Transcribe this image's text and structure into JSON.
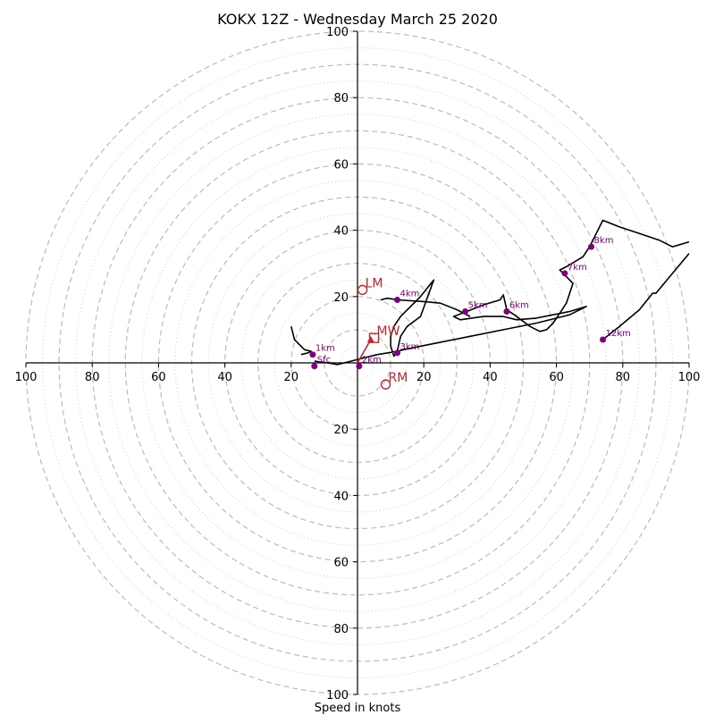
{
  "chart_data": {
    "type": "hodograph",
    "title": "KOKX 12Z - Wednesday March 25 2020",
    "xlabel": "Speed in knots",
    "ylabel": "",
    "xlim": [
      -100,
      100
    ],
    "ylim": [
      -100,
      100
    ],
    "axis_ticks": {
      "right": [
        "20",
        "40",
        "60",
        "80",
        "100"
      ],
      "left": [
        "20",
        "40",
        "60",
        "80",
        "100"
      ],
      "up": [
        "20",
        "40",
        "60",
        "80",
        "100"
      ],
      "down": [
        "20",
        "40",
        "60",
        "80",
        "100"
      ]
    },
    "rings": {
      "major": [
        10,
        20,
        30,
        40,
        50,
        60,
        70,
        80,
        90,
        100
      ],
      "minor": [
        5,
        15,
        25,
        35,
        45,
        55,
        65,
        75,
        85,
        95
      ]
    },
    "colors": {
      "trace": "#000000",
      "height_markers": "#800080",
      "storm_motion": "#c0262d",
      "rings": "#bbbbbb"
    },
    "trace": [
      [
        -13,
        0.5
      ],
      [
        -9,
        0
      ],
      [
        -6,
        -0.5
      ],
      [
        -2,
        0.5
      ],
      [
        2,
        1.5
      ],
      [
        6,
        2.5
      ],
      [
        9,
        3
      ],
      [
        12,
        3.5
      ],
      [
        13,
        8
      ],
      [
        15,
        11
      ],
      [
        19,
        14
      ],
      [
        23,
        25
      ],
      [
        19,
        20
      ],
      [
        16,
        17
      ],
      [
        13,
        14
      ],
      [
        11,
        11
      ],
      [
        10,
        8
      ],
      [
        10,
        5
      ],
      [
        11,
        2
      ],
      [
        12,
        3.5
      ],
      [
        14,
        4
      ],
      [
        24,
        6
      ],
      [
        34,
        8
      ],
      [
        44,
        10
      ],
      [
        54,
        12
      ],
      [
        64,
        14.5
      ],
      [
        69,
        17
      ],
      [
        64,
        15.5
      ],
      [
        59,
        14.5
      ],
      [
        54,
        13.5
      ],
      [
        48,
        13
      ],
      [
        44,
        14
      ],
      [
        38,
        14
      ],
      [
        31,
        13
      ],
      [
        29,
        14
      ],
      [
        33,
        15.5
      ],
      [
        38,
        17.5
      ],
      [
        43,
        19
      ],
      [
        44,
        20.5
      ],
      [
        45,
        16
      ],
      [
        48,
        14
      ],
      [
        52,
        11
      ],
      [
        55,
        9.5
      ],
      [
        57,
        10
      ],
      [
        59,
        12
      ],
      [
        61,
        15
      ],
      [
        63,
        18
      ],
      [
        65,
        24
      ],
      [
        61,
        28
      ],
      [
        63,
        29
      ],
      [
        68,
        32
      ],
      [
        70,
        35
      ],
      [
        72,
        39
      ],
      [
        74,
        43
      ],
      [
        79,
        41
      ],
      [
        85,
        39
      ],
      [
        91,
        37
      ],
      [
        94,
        35.5
      ],
      [
        95,
        35
      ],
      [
        100,
        36.5
      ]
    ],
    "trace_lower": [
      [
        -20,
        11
      ],
      [
        -19,
        7
      ],
      [
        -16,
        4
      ],
      [
        -14,
        3.5
      ],
      [
        -15,
        3
      ],
      [
        -17,
        2.5
      ]
    ],
    "trace_upper": [
      [
        74,
        7
      ],
      [
        79,
        11
      ],
      [
        85,
        16
      ],
      [
        89,
        21
      ],
      [
        90,
        21
      ],
      [
        95,
        27
      ],
      [
        100,
        33
      ]
    ],
    "trace_mid": [
      [
        7,
        19
      ],
      [
        9,
        19.5
      ],
      [
        12,
        19
      ],
      [
        20,
        18.5
      ],
      [
        25,
        18
      ],
      [
        30,
        16
      ],
      [
        34,
        14
      ]
    ],
    "height_markers": [
      {
        "label": "Sfc",
        "u": -13,
        "v": -1
      },
      {
        "label": "1km",
        "u": -13.5,
        "v": 2.5
      },
      {
        "label": "2km",
        "u": 0.5,
        "v": -1
      },
      {
        "label": "3km",
        "u": 12,
        "v": 3
      },
      {
        "label": "4km",
        "u": 12,
        "v": 19
      },
      {
        "label": "5km",
        "u": 32.5,
        "v": 15.5
      },
      {
        "label": "6km",
        "u": 45,
        "v": 15.5
      },
      {
        "label": "7km",
        "u": 62.5,
        "v": 27
      },
      {
        "label": "8km",
        "u": 70.5,
        "v": 35
      },
      {
        "label": "12km",
        "u": 74,
        "v": 7
      }
    ],
    "storm_motion": [
      {
        "label": "LM",
        "u": 1.5,
        "v": 22,
        "marker": "circle"
      },
      {
        "label": "MW",
        "u": 5,
        "v": 7.5,
        "marker": "square"
      },
      {
        "label": "RM",
        "u": 8.5,
        "v": -6.5,
        "marker": "circle"
      }
    ],
    "shear_vector": {
      "from": [
        0,
        0
      ],
      "to": [
        4,
        7
      ]
    }
  }
}
